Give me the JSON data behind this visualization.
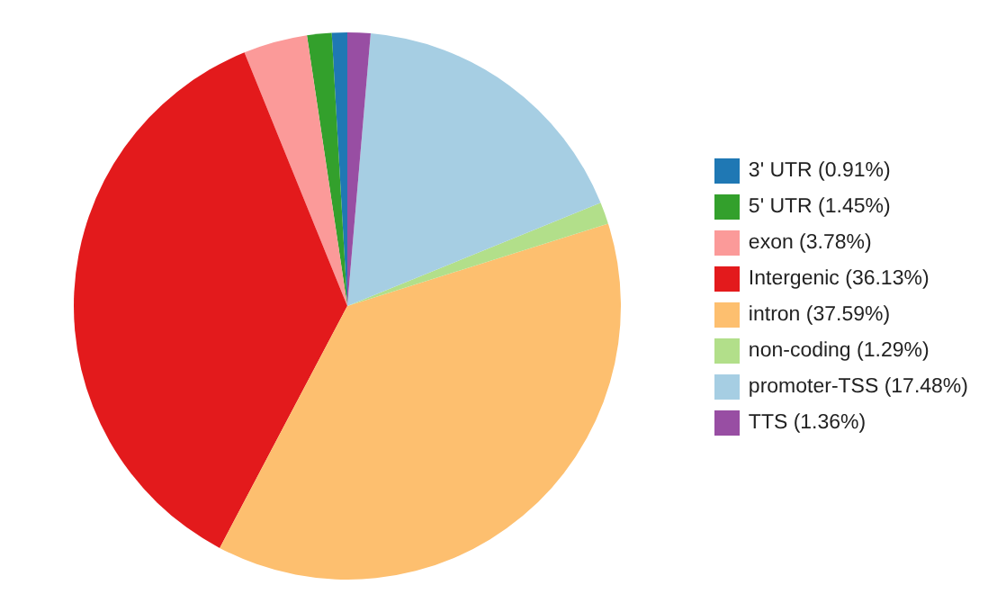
{
  "chart_data": {
    "type": "pie",
    "categories": [
      "3' UTR (0.91%)",
      "5' UTR (1.45%)",
      "exon (3.78%)",
      "Intergenic (36.13%)",
      "intron (37.59%)",
      "non-coding (1.29%)",
      "promoter-TSS (17.48%)",
      "TTS (1.36%)"
    ],
    "values": [
      0.91,
      1.45,
      3.78,
      36.13,
      37.59,
      1.29,
      17.48,
      1.36
    ],
    "colors": [
      "#1f78b4",
      "#33a02c",
      "#fb9a99",
      "#e31a1c",
      "#fdbf6f",
      "#b2df8a",
      "#a6cee3",
      "#984ea3"
    ],
    "legend": "right"
  }
}
